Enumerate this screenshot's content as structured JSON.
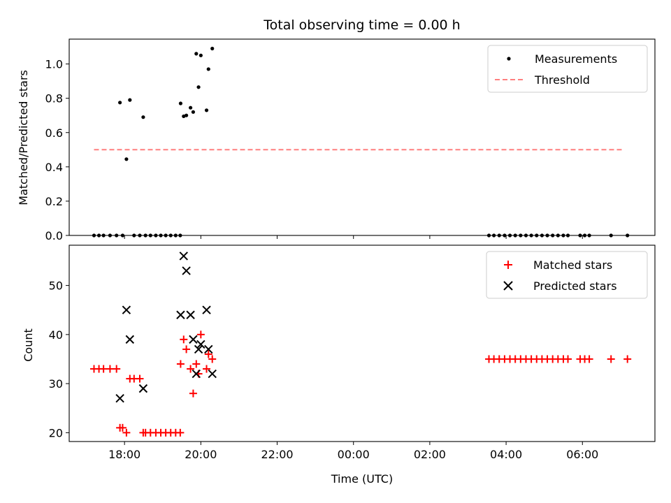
{
  "title": "Total observing time = 0.00 h",
  "colors": {
    "measurements": "#000000",
    "threshold": "#ff7f7f",
    "matched": "#ff0000",
    "predicted": "#000000"
  },
  "chart_data": [
    {
      "type": "scatter",
      "xlabel": "",
      "ylabel": "Matched/Predicted stars",
      "xlim": [
        16.55,
        31.9
      ],
      "ylim": [
        0,
        1.145
      ],
      "x_ticks_hours": [
        18,
        20,
        22,
        24,
        26,
        28,
        30
      ],
      "y_ticks": [
        "0.0",
        "0.2",
        "0.4",
        "0.6",
        "0.8",
        "1.0"
      ],
      "legend_position": "top-right",
      "legend": [
        "Measurements",
        "Threshold"
      ],
      "series": [
        {
          "name": "Measurements",
          "marker": "dot",
          "x": [
            17.2,
            17.33,
            17.45,
            17.62,
            17.79,
            17.95,
            18.25,
            18.4,
            18.55,
            18.68,
            18.82,
            18.95,
            19.08,
            19.21,
            19.34,
            19.46,
            17.88,
            18.05,
            18.14,
            18.49,
            19.47,
            19.55,
            19.62,
            19.73,
            19.8,
            19.88,
            19.94,
            20.0,
            20.15,
            20.2,
            20.3,
            27.55,
            27.68,
            27.82,
            27.96,
            28.1,
            28.24,
            28.38,
            28.52,
            28.66,
            28.8,
            28.94,
            29.08,
            29.22,
            29.36,
            29.5,
            29.62,
            29.94,
            30.06,
            30.18,
            30.75,
            31.18
          ],
          "y": [
            0,
            0,
            0,
            0,
            0,
            0,
            0,
            0,
            0,
            0,
            0,
            0,
            0,
            0,
            0,
            0,
            0.775,
            0.445,
            0.79,
            0.69,
            0.77,
            0.695,
            0.7,
            0.745,
            0.72,
            1.06,
            0.865,
            1.05,
            0.73,
            0.97,
            1.09,
            0,
            0,
            0,
            0,
            0,
            0,
            0,
            0,
            0,
            0,
            0,
            0,
            0,
            0,
            0,
            0,
            0,
            0,
            0,
            0,
            0
          ]
        },
        {
          "name": "Threshold",
          "marker": "dashed-line",
          "x": [
            17.2,
            31.1
          ],
          "y": [
            0.5,
            0.5
          ]
        }
      ]
    },
    {
      "type": "scatter",
      "xlabel": "Time (UTC)",
      "ylabel": "Count",
      "xlim": [
        16.55,
        31.9
      ],
      "ylim": [
        18.2,
        58.2
      ],
      "x_ticks_hours": [
        18,
        20,
        22,
        24,
        26,
        28,
        30
      ],
      "x_tick_labels": [
        "18:00",
        "20:00",
        "22:00",
        "00:00",
        "02:00",
        "04:00",
        "06:00"
      ],
      "y_ticks": [
        "20",
        "30",
        "40",
        "50"
      ],
      "legend_position": "top-right",
      "legend": [
        "Matched stars",
        "Predicted stars"
      ],
      "series": [
        {
          "name": "Matched stars",
          "marker": "plus",
          "x": [
            17.2,
            17.33,
            17.45,
            17.62,
            17.79,
            17.88,
            17.95,
            18.05,
            18.14,
            18.25,
            18.4,
            18.49,
            18.55,
            18.68,
            18.82,
            18.95,
            19.08,
            19.21,
            19.34,
            19.46,
            19.47,
            19.55,
            19.62,
            19.73,
            19.8,
            19.88,
            19.94,
            20.0,
            20.15,
            20.2,
            20.3,
            27.55,
            27.68,
            27.82,
            27.96,
            28.1,
            28.24,
            28.38,
            28.52,
            28.66,
            28.8,
            28.94,
            29.08,
            29.22,
            29.36,
            29.5,
            29.62,
            29.94,
            30.06,
            30.18,
            30.75,
            31.18
          ],
          "y": [
            33,
            33,
            33,
            33,
            33,
            21,
            21,
            20,
            31,
            31,
            31,
            20,
            20,
            20,
            20,
            20,
            20,
            20,
            20,
            20,
            34,
            39,
            37,
            33,
            28,
            34,
            32,
            40,
            33,
            36,
            35,
            35,
            35,
            35,
            35,
            35,
            35,
            35,
            35,
            35,
            35,
            35,
            35,
            35,
            35,
            35,
            35,
            35,
            35,
            35,
            35,
            35
          ]
        },
        {
          "name": "Predicted stars",
          "marker": "x",
          "x": [
            17.88,
            18.05,
            18.14,
            18.49,
            19.47,
            19.55,
            19.62,
            19.73,
            19.8,
            19.88,
            19.94,
            20.0,
            20.15,
            20.2,
            20.3
          ],
          "y": [
            27,
            45,
            39,
            29,
            44,
            56,
            53,
            44,
            39,
            32,
            37,
            38,
            45,
            37,
            32
          ]
        }
      ]
    }
  ]
}
